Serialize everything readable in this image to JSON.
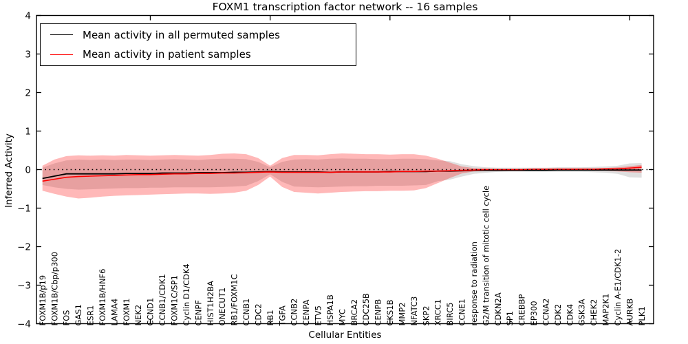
{
  "chart_data": {
    "type": "line",
    "title": "FOXM1 transcription factor network -- 16 samples",
    "xlabel": "Cellular Entities",
    "ylabel": "Inferred Activity",
    "ylim": [
      -4,
      4
    ],
    "xlim": [
      0.5,
      52
    ],
    "yticks": [
      -4,
      -3,
      -2,
      -1,
      0,
      1,
      2,
      3,
      4
    ],
    "xticks": [
      10,
      20,
      30,
      40,
      50
    ],
    "zero_line": 0,
    "grid": false,
    "legend_position": "upper left",
    "categories": [
      "FOXM1B/p19",
      "FOXM1B/Cbp/p300",
      "FOS",
      "GAS1",
      "ESR1",
      "FOXM1B/HNF6",
      "LAMA4",
      "FOXM1",
      "NEK2",
      "CCND1",
      "CCNB1/CDK1",
      "FOXM1C/SP1",
      "Cyclin D1/CDK4",
      "CENPF",
      "HIST1H2BA",
      "ONECUT1",
      "RB1/FOXM1C",
      "CCNB1",
      "CDC2",
      "RB1",
      "TGFA",
      "CCNB2",
      "CENPA",
      "ETV5",
      "HSPA1B",
      "MYC",
      "BRCA2",
      "CDC25B",
      "CENPB",
      "CKS1B",
      "MMP2",
      "NFATC3",
      "SKP2",
      "XRCC1",
      "BIRC5",
      "CCNE1",
      "response to radiation",
      "G2/M transition of mitotic cell cycle",
      "CDKN2A",
      "SP1",
      "CREBBP",
      "EP300",
      "CCNA2",
      "CDK2",
      "CDK4",
      "GSK3A",
      "CHEK2",
      "MAP2K1",
      "Cyclin A-E1/CDK1-2",
      "AURKB",
      "PLK1"
    ],
    "series": [
      {
        "name": "Mean activity in all permuted samples",
        "color": "#000000",
        "values": [
          -0.23,
          -0.17,
          -0.11,
          -0.11,
          -0.11,
          -0.11,
          -0.11,
          -0.1,
          -0.1,
          -0.1,
          -0.09,
          -0.09,
          -0.09,
          -0.08,
          -0.08,
          -0.08,
          -0.07,
          -0.07,
          -0.06,
          -0.05,
          -0.06,
          -0.06,
          -0.06,
          -0.06,
          -0.07,
          -0.06,
          -0.06,
          -0.06,
          -0.06,
          -0.05,
          -0.05,
          -0.05,
          -0.05,
          -0.04,
          -0.04,
          -0.03,
          -0.02,
          -0.02,
          -0.02,
          -0.02,
          -0.02,
          -0.02,
          -0.02,
          -0.01,
          -0.01,
          -0.01,
          -0.01,
          -0.01,
          -0.01,
          -0.01,
          -0.01
        ]
      },
      {
        "name": "Mean activity in patient samples",
        "color": "#ff0000",
        "values": [
          -0.3,
          -0.25,
          -0.2,
          -0.18,
          -0.17,
          -0.16,
          -0.15,
          -0.14,
          -0.13,
          -0.13,
          -0.12,
          -0.11,
          -0.11,
          -0.1,
          -0.1,
          -0.09,
          -0.09,
          -0.08,
          -0.07,
          -0.06,
          -0.07,
          -0.07,
          -0.07,
          -0.07,
          -0.07,
          -0.06,
          -0.06,
          -0.06,
          -0.06,
          -0.06,
          -0.05,
          -0.05,
          -0.04,
          -0.04,
          -0.03,
          -0.02,
          -0.01,
          0.0,
          0.0,
          0.0,
          0.0,
          0.01,
          0.01,
          0.01,
          0.01,
          0.01,
          0.01,
          0.02,
          0.02,
          0.04,
          0.06
        ]
      }
    ],
    "bands": [
      {
        "name": "permuted-samples-std-band",
        "color": "#999999",
        "opacity": 0.32,
        "upper": [
          0.05,
          0.16,
          0.24,
          0.26,
          0.25,
          0.26,
          0.25,
          0.26,
          0.26,
          0.25,
          0.26,
          0.27,
          0.26,
          0.25,
          0.27,
          0.28,
          0.28,
          0.27,
          0.2,
          0.06,
          0.2,
          0.26,
          0.27,
          0.26,
          0.28,
          0.29,
          0.28,
          0.28,
          0.27,
          0.27,
          0.28,
          0.28,
          0.27,
          0.24,
          0.22,
          0.14,
          0.09,
          0.06,
          0.05,
          0.05,
          0.05,
          0.05,
          0.05,
          0.06,
          0.06,
          0.06,
          0.07,
          0.08,
          0.1,
          0.16,
          0.17
        ],
        "lower": [
          -0.4,
          -0.46,
          -0.5,
          -0.52,
          -0.51,
          -0.5,
          -0.49,
          -0.48,
          -0.48,
          -0.47,
          -0.47,
          -0.46,
          -0.46,
          -0.46,
          -0.46,
          -0.45,
          -0.44,
          -0.42,
          -0.3,
          -0.12,
          -0.32,
          -0.44,
          -0.45,
          -0.46,
          -0.45,
          -0.44,
          -0.43,
          -0.43,
          -0.42,
          -0.42,
          -0.42,
          -0.41,
          -0.4,
          -0.3,
          -0.26,
          -0.18,
          -0.11,
          -0.08,
          -0.06,
          -0.05,
          -0.05,
          -0.05,
          -0.05,
          -0.06,
          -0.06,
          -0.06,
          -0.07,
          -0.08,
          -0.11,
          -0.2,
          -0.21
        ]
      },
      {
        "name": "patient-samples-std-band",
        "color": "#ff0000",
        "opacity": 0.28,
        "upper": [
          0.1,
          0.26,
          0.35,
          0.37,
          0.36,
          0.37,
          0.36,
          0.38,
          0.37,
          0.36,
          0.37,
          0.38,
          0.37,
          0.36,
          0.38,
          0.41,
          0.42,
          0.4,
          0.3,
          0.1,
          0.3,
          0.38,
          0.38,
          0.37,
          0.4,
          0.42,
          0.41,
          0.4,
          0.4,
          0.39,
          0.4,
          0.4,
          0.36,
          0.28,
          0.18,
          0.08,
          0.04,
          0.03,
          0.02,
          0.02,
          0.02,
          0.02,
          0.02,
          0.03,
          0.03,
          0.03,
          0.03,
          0.04,
          0.06,
          0.09,
          0.12
        ],
        "lower": [
          -0.55,
          -0.63,
          -0.7,
          -0.75,
          -0.73,
          -0.7,
          -0.68,
          -0.67,
          -0.66,
          -0.65,
          -0.64,
          -0.63,
          -0.62,
          -0.62,
          -0.63,
          -0.62,
          -0.6,
          -0.55,
          -0.4,
          -0.18,
          -0.45,
          -0.58,
          -0.6,
          -0.62,
          -0.6,
          -0.58,
          -0.57,
          -0.56,
          -0.56,
          -0.55,
          -0.55,
          -0.54,
          -0.48,
          -0.35,
          -0.22,
          -0.1,
          -0.05,
          -0.03,
          -0.02,
          -0.02,
          -0.02,
          -0.02,
          -0.02,
          -0.02,
          -0.02,
          -0.02,
          -0.03,
          -0.03,
          -0.05,
          -0.07,
          -0.08
        ]
      }
    ],
    "legend": {
      "items": [
        {
          "label": "Mean activity in all permuted samples",
          "color": "#000000"
        },
        {
          "label": "Mean activity in patient samples",
          "color": "#ff0000"
        }
      ]
    },
    "style": {
      "frame_color": "#000000",
      "background": "#ffffff",
      "zero_line_style": "dotted"
    }
  }
}
